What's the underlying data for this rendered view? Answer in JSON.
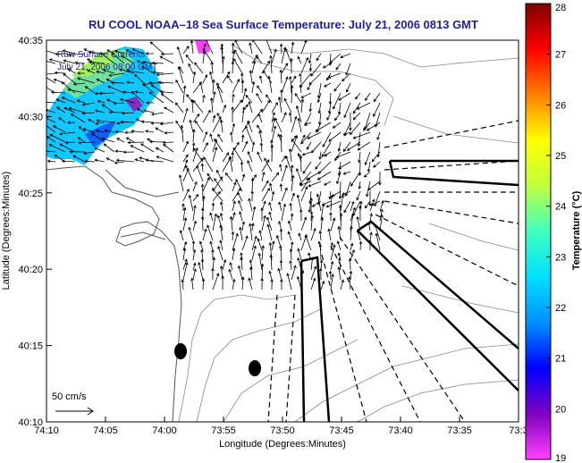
{
  "header": {
    "title": "RU COOL  NOAA–18  Sea Surface Temperature:  July 21, 2006 0813 GMT"
  },
  "map": {
    "overlay_line1": "Raw Surface Currents",
    "overlay_line2": "July 21, 2006 08:00 GMT",
    "x_axis_label": "Longitude (Degrees:Minutes)",
    "y_axis_label": "Latitude (Degrees:Minutes)",
    "x_ticks": [
      "74:10",
      "74:05",
      "74:00",
      "73:55",
      "73:50",
      "73:45",
      "73:40",
      "73:35",
      "73:3"
    ],
    "y_ticks": [
      "40:35",
      "40:30",
      "40:25",
      "40:20",
      "40:15",
      "40:10"
    ],
    "scale_label": "50 cm/s",
    "colors": {
      "frame": "#000000",
      "land_outline": "#555555",
      "bathymetry": "#777777",
      "vector": "#000000"
    }
  },
  "colorbar": {
    "label": "Temperature (°C)",
    "ticks": [
      "28",
      "27",
      "26",
      "25",
      "24",
      "23",
      "22",
      "21",
      "20",
      "19"
    ],
    "min": 19,
    "max": 28,
    "stops": [
      "#ff40ff",
      "#8000c0",
      "#0000ff",
      "#0090ff",
      "#00e0ff",
      "#40ffc0",
      "#c0ff40",
      "#ffff00",
      "#ff8000",
      "#ff0000",
      "#800000"
    ]
  }
}
